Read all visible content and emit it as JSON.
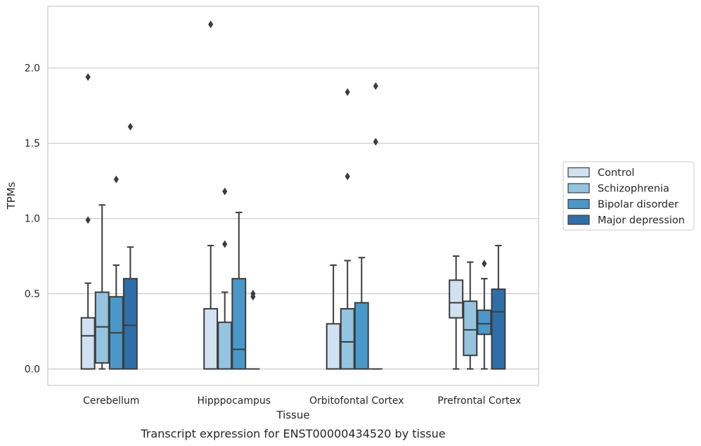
{
  "chart_data": {
    "type": "box",
    "caption": "Transcript expression for ENST00000434520 by tissue",
    "xlabel": "Tissue",
    "ylabel": "TPMs",
    "ylim": [
      -0.11,
      2.41
    ],
    "yticks": [
      0.0,
      0.5,
      1.0,
      1.5,
      2.0
    ],
    "ytick_labels": [
      "0.0",
      "0.5",
      "1.0",
      "1.5",
      "2.0"
    ],
    "grid": "horizontal",
    "legend_position": "right",
    "categories": [
      "Cerebellum",
      "Hipppocampus",
      "Orbitofontal Cortex",
      "Prefrontal Cortex"
    ],
    "series": [
      {
        "name": "Control",
        "color": "#d0e1f2",
        "boxes": [
          {
            "q1": 0.0,
            "median": 0.22,
            "q3": 0.34,
            "whisker_low": 0.0,
            "whisker_high": 0.57,
            "outliers": [
              0.99,
              1.94
            ]
          },
          {
            "q1": 0.0,
            "median": 0.0,
            "q3": 0.4,
            "whisker_low": 0.0,
            "whisker_high": 0.82,
            "outliers": [
              2.29
            ]
          },
          {
            "q1": 0.0,
            "median": 0.0,
            "q3": 0.3,
            "whisker_low": 0.0,
            "whisker_high": 0.69,
            "outliers": []
          },
          {
            "q1": 0.34,
            "median": 0.44,
            "q3": 0.59,
            "whisker_low": 0.0,
            "whisker_high": 0.75,
            "outliers": []
          }
        ]
      },
      {
        "name": "Schizophrenia",
        "color": "#94c4df",
        "boxes": [
          {
            "q1": 0.04,
            "median": 0.28,
            "q3": 0.51,
            "whisker_low": 0.0,
            "whisker_high": 1.09,
            "outliers": []
          },
          {
            "q1": 0.0,
            "median": 0.0,
            "q3": 0.31,
            "whisker_low": 0.0,
            "whisker_high": 0.51,
            "outliers": [
              0.83,
              1.18
            ]
          },
          {
            "q1": 0.0,
            "median": 0.18,
            "q3": 0.4,
            "whisker_low": 0.0,
            "whisker_high": 0.72,
            "outliers": [
              1.28,
              1.84
            ]
          },
          {
            "q1": 0.09,
            "median": 0.26,
            "q3": 0.45,
            "whisker_low": 0.0,
            "whisker_high": 0.71,
            "outliers": []
          }
        ]
      },
      {
        "name": "Bipolar disorder",
        "color": "#4a98c9",
        "boxes": [
          {
            "q1": 0.0,
            "median": 0.24,
            "q3": 0.48,
            "whisker_low": 0.0,
            "whisker_high": 0.69,
            "outliers": [
              1.26
            ]
          },
          {
            "q1": 0.0,
            "median": 0.13,
            "q3": 0.6,
            "whisker_low": 0.0,
            "whisker_high": 1.04,
            "outliers": []
          },
          {
            "q1": 0.0,
            "median": 0.0,
            "q3": 0.44,
            "whisker_low": 0.0,
            "whisker_high": 0.74,
            "outliers": []
          },
          {
            "q1": 0.23,
            "median": 0.3,
            "q3": 0.39,
            "whisker_low": 0.0,
            "whisker_high": 0.6,
            "outliers": [
              0.7
            ]
          }
        ]
      },
      {
        "name": "Major depression",
        "color": "#2e6faa",
        "boxes": [
          {
            "q1": 0.0,
            "median": 0.29,
            "q3": 0.6,
            "whisker_low": 0.0,
            "whisker_high": 0.81,
            "outliers": [
              1.61
            ]
          },
          {
            "q1": 0.0,
            "median": 0.0,
            "q3": 0.0,
            "whisker_low": 0.0,
            "whisker_high": 0.0,
            "outliers": [
              0.48,
              0.5
            ]
          },
          {
            "q1": 0.0,
            "median": 0.0,
            "q3": 0.0,
            "whisker_low": 0.0,
            "whisker_high": 0.0,
            "outliers": [
              1.51,
              1.88
            ]
          },
          {
            "q1": 0.0,
            "median": 0.38,
            "q3": 0.53,
            "whisker_low": 0.0,
            "whisker_high": 0.82,
            "outliers": []
          }
        ]
      }
    ]
  }
}
